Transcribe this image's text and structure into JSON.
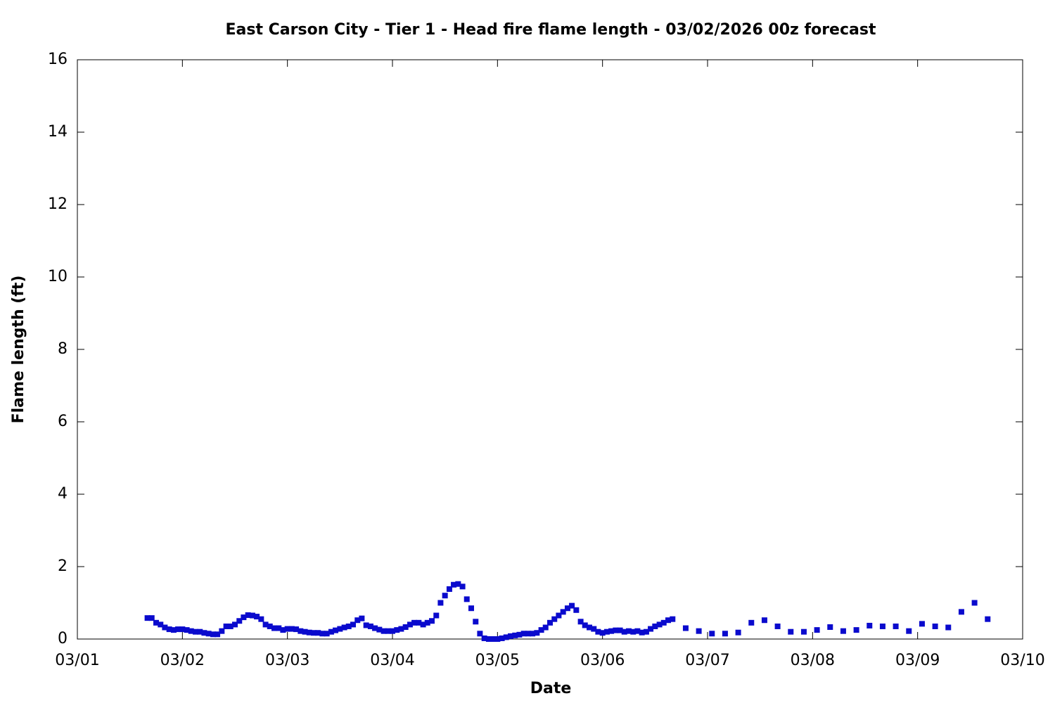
{
  "chart_data": {
    "type": "scatter",
    "title": "East Carson City - Tier 1 - Head fire flame length - 03/02/2026 00z forecast",
    "x_label": "Date",
    "y_label": "Flame length (ft)",
    "color": "#0a0acd",
    "x": [
      0.667,
      0.708,
      0.75,
      0.792,
      0.833,
      0.875,
      0.917,
      0.958,
      1,
      1.042,
      1.083,
      1.125,
      1.167,
      1.208,
      1.25,
      1.292,
      1.333,
      1.375,
      1.417,
      1.458,
      1.5,
      1.542,
      1.583,
      1.625,
      1.667,
      1.708,
      1.75,
      1.792,
      1.833,
      1.875,
      1.917,
      1.958,
      2,
      2.042,
      2.083,
      2.125,
      2.167,
      2.208,
      2.25,
      2.292,
      2.333,
      2.375,
      2.417,
      2.458,
      2.5,
      2.542,
      2.583,
      2.625,
      2.667,
      2.708,
      2.75,
      2.792,
      2.833,
      2.875,
      2.917,
      2.958,
      3,
      3.042,
      3.083,
      3.125,
      3.167,
      3.208,
      3.25,
      3.292,
      3.333,
      3.375,
      3.417,
      3.458,
      3.5,
      3.542,
      3.583,
      3.625,
      3.667,
      3.708,
      3.75,
      3.792,
      3.833,
      3.875,
      3.917,
      3.958,
      4,
      4.042,
      4.083,
      4.125,
      4.167,
      4.208,
      4.25,
      4.292,
      4.333,
      4.375,
      4.417,
      4.458,
      4.5,
      4.542,
      4.583,
      4.625,
      4.667,
      4.708,
      4.75,
      4.792,
      4.833,
      4.875,
      4.917,
      4.958,
      5,
      5.042,
      5.083,
      5.125,
      5.167,
      5.208,
      5.25,
      5.292,
      5.333,
      5.375,
      5.417,
      5.458,
      5.5,
      5.542,
      5.583,
      5.625,
      5.667,
      5.792,
      5.917,
      6.042,
      6.167,
      6.292,
      6.417,
      6.542,
      6.667,
      6.792,
      6.917,
      7.042,
      7.167,
      7.292,
      7.417,
      7.542,
      7.667,
      7.792,
      7.917,
      8.042,
      8.167,
      8.292,
      8.417,
      8.542,
      8.667
    ],
    "values": [
      0.58,
      0.58,
      0.45,
      0.4,
      0.32,
      0.27,
      0.25,
      0.27,
      0.27,
      0.25,
      0.22,
      0.2,
      0.2,
      0.17,
      0.15,
      0.13,
      0.13,
      0.22,
      0.35,
      0.35,
      0.4,
      0.5,
      0.6,
      0.66,
      0.65,
      0.62,
      0.55,
      0.4,
      0.35,
      0.3,
      0.3,
      0.25,
      0.28,
      0.28,
      0.27,
      0.22,
      0.2,
      0.18,
      0.17,
      0.17,
      0.15,
      0.15,
      0.2,
      0.24,
      0.28,
      0.32,
      0.35,
      0.4,
      0.52,
      0.57,
      0.38,
      0.35,
      0.3,
      0.26,
      0.22,
      0.22,
      0.22,
      0.25,
      0.28,
      0.33,
      0.4,
      0.45,
      0.45,
      0.4,
      0.45,
      0.5,
      0.65,
      1.0,
      1.2,
      1.38,
      1.5,
      1.52,
      1.45,
      1.1,
      0.85,
      0.48,
      0.15,
      0.02,
      0,
      0,
      0,
      0.02,
      0.05,
      0.08,
      0.1,
      0.12,
      0.15,
      0.15,
      0.15,
      0.17,
      0.25,
      0.32,
      0.45,
      0.55,
      0.65,
      0.75,
      0.85,
      0.92,
      0.8,
      0.48,
      0.38,
      0.32,
      0.28,
      0.2,
      0.17,
      0.2,
      0.22,
      0.24,
      0.24,
      0.2,
      0.22,
      0.2,
      0.22,
      0.18,
      0.2,
      0.28,
      0.35,
      0.4,
      0.45,
      0.52,
      0.55,
      0.3,
      0.22,
      0.15,
      0.15,
      0.18,
      0.45,
      0.52,
      0.35,
      0.2,
      0.2,
      0.25,
      0.33,
      0.22,
      0.25,
      0.37,
      0.35,
      0.35,
      0.22,
      0.42,
      0.35,
      0.32,
      0.75,
      1.0,
      0.55
    ],
    "xlim": [
      0,
      9
    ],
    "xticks": [
      {
        "value": 0,
        "label": "03/01"
      },
      {
        "value": 1,
        "label": "03/02"
      },
      {
        "value": 2,
        "label": "03/03"
      },
      {
        "value": 3,
        "label": "03/04"
      },
      {
        "value": 4,
        "label": "03/05"
      },
      {
        "value": 5,
        "label": "03/06"
      },
      {
        "value": 6,
        "label": "03/07"
      },
      {
        "value": 7,
        "label": "03/08"
      },
      {
        "value": 8,
        "label": "03/09"
      },
      {
        "value": 9,
        "label": "03/10"
      }
    ],
    "ylim": [
      0,
      16
    ],
    "yticks": [
      0,
      2,
      4,
      6,
      8,
      10,
      12,
      14,
      16
    ],
    "grid": false
  }
}
